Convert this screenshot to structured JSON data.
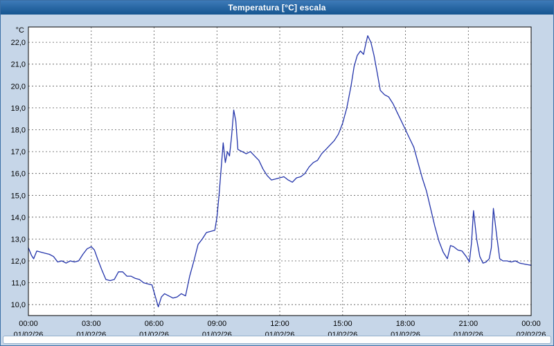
{
  "window": {
    "title": "Temperatura [°C] escala"
  },
  "colors": {
    "titlebar_top": "#3d7ab8",
    "titlebar_bottom": "#155590",
    "background": "#c6d6e8",
    "plot_background": "#ffffff",
    "grid": "#555555",
    "line": "#2233aa"
  },
  "chart_data": {
    "type": "line",
    "title": "Temperatura [°C] escala",
    "xlabel": "",
    "ylabel": "°C",
    "ylim": [
      9.5,
      22.7
    ],
    "xlim": [
      0,
      24
    ],
    "grid": true,
    "legend_position": "none",
    "line_color": "#2233aa",
    "yticks": [
      10,
      11,
      12,
      13,
      14,
      15,
      16,
      17,
      18,
      19,
      20,
      21,
      22
    ],
    "ytick_labels": [
      "10,0",
      "11,0",
      "12,0",
      "13,0",
      "14,0",
      "15,0",
      "16,0",
      "17,0",
      "18,0",
      "19,0",
      "20,0",
      "21,0",
      "22,0"
    ],
    "xticks": [
      0,
      3,
      6,
      9,
      12,
      15,
      18,
      21,
      24
    ],
    "xtick_labels": [
      "00:00",
      "03:00",
      "06:00",
      "09:00",
      "12:00",
      "15:00",
      "18:00",
      "21:00",
      "00:00"
    ],
    "xtick_dates": [
      "01/02/26",
      "01/02/26",
      "01/02/26",
      "01/02/26",
      "01/02/26",
      "01/02/26",
      "01/02/26",
      "01/02/26",
      "02/02/26"
    ],
    "series": [
      {
        "name": "Temperatura",
        "x": [
          0,
          0.15,
          0.25,
          0.4,
          0.6,
          0.8,
          1.0,
          1.2,
          1.4,
          1.6,
          1.8,
          2.0,
          2.2,
          2.4,
          2.6,
          2.8,
          3.0,
          3.15,
          3.3,
          3.5,
          3.7,
          3.9,
          4.1,
          4.3,
          4.5,
          4.7,
          4.9,
          5.1,
          5.3,
          5.5,
          5.7,
          5.9,
          6.05,
          6.2,
          6.35,
          6.5,
          6.7,
          6.9,
          7.1,
          7.3,
          7.5,
          7.7,
          7.9,
          8.1,
          8.3,
          8.5,
          8.7,
          8.9,
          9.0,
          9.1,
          9.2,
          9.3,
          9.4,
          9.5,
          9.6,
          9.7,
          9.8,
          9.9,
          10.0,
          10.2,
          10.4,
          10.6,
          10.8,
          11.0,
          11.2,
          11.4,
          11.6,
          11.8,
          12.0,
          12.2,
          12.4,
          12.6,
          12.8,
          13.0,
          13.2,
          13.4,
          13.6,
          13.8,
          14.0,
          14.2,
          14.4,
          14.6,
          14.8,
          15.0,
          15.2,
          15.4,
          15.55,
          15.7,
          15.85,
          16.0,
          16.1,
          16.2,
          16.35,
          16.5,
          16.65,
          16.8,
          17.0,
          17.2,
          17.4,
          17.6,
          17.8,
          18.0,
          18.2,
          18.4,
          18.6,
          18.8,
          19.0,
          19.2,
          19.4,
          19.6,
          19.8,
          20.0,
          20.15,
          20.3,
          20.5,
          20.7,
          20.9,
          21.05,
          21.15,
          21.25,
          21.4,
          21.55,
          21.7,
          21.85,
          22.0,
          22.1,
          22.2,
          22.35,
          22.5,
          22.65,
          22.85,
          23.05,
          23.25,
          23.45,
          23.7,
          24.0
        ],
        "y": [
          12.6,
          12.25,
          12.1,
          12.45,
          12.4,
          12.35,
          12.3,
          12.2,
          11.95,
          12.0,
          11.9,
          12.0,
          11.95,
          12.0,
          12.3,
          12.55,
          12.65,
          12.5,
          12.1,
          11.6,
          11.15,
          11.1,
          11.15,
          11.5,
          11.5,
          11.3,
          11.3,
          11.2,
          11.15,
          11.0,
          10.95,
          10.9,
          10.4,
          9.9,
          10.35,
          10.5,
          10.4,
          10.3,
          10.35,
          10.5,
          10.4,
          11.3,
          12.0,
          12.75,
          13.0,
          13.3,
          13.35,
          13.4,
          14.0,
          15.0,
          16.2,
          17.4,
          16.5,
          17.0,
          16.8,
          17.7,
          18.9,
          18.4,
          17.1,
          17.0,
          16.9,
          17.0,
          16.8,
          16.6,
          16.2,
          15.9,
          15.7,
          15.75,
          15.8,
          15.85,
          15.7,
          15.6,
          15.8,
          15.85,
          16.0,
          16.3,
          16.5,
          16.6,
          16.9,
          17.1,
          17.3,
          17.5,
          17.8,
          18.3,
          19.0,
          20.0,
          20.9,
          21.4,
          21.6,
          21.45,
          21.9,
          22.3,
          22.0,
          21.4,
          20.6,
          19.8,
          19.6,
          19.5,
          19.2,
          18.8,
          18.4,
          18.0,
          17.6,
          17.2,
          16.5,
          15.8,
          15.2,
          14.4,
          13.6,
          12.9,
          12.4,
          12.1,
          12.7,
          12.65,
          12.5,
          12.45,
          12.2,
          11.95,
          12.8,
          14.3,
          13.0,
          12.2,
          11.9,
          11.95,
          12.1,
          12.6,
          14.4,
          13.2,
          12.1,
          12.0,
          12.0,
          11.95,
          12.0,
          11.9,
          11.85,
          11.8
        ]
      }
    ]
  }
}
